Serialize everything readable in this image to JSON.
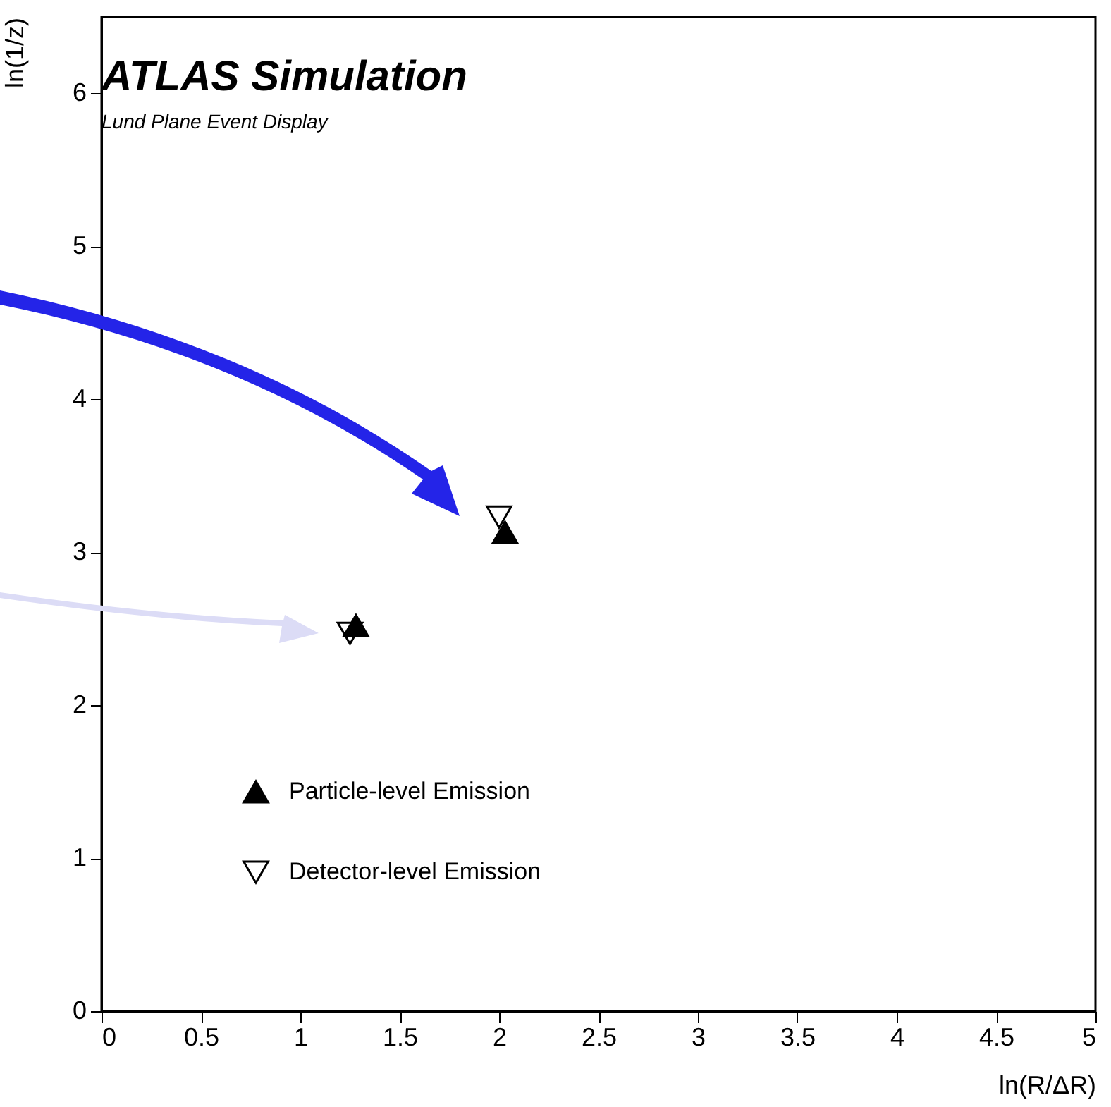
{
  "chart_data": {
    "type": "scatter",
    "title": "ATLAS Simulation",
    "subtitle": "Lund Plane Event Display",
    "xlabel": "ln(R/ΔR)",
    "ylabel": "ln(1/z)",
    "xlim": [
      0,
      5
    ],
    "xticks": [
      0,
      0.5,
      1,
      1.5,
      2,
      2.5,
      3,
      3.5,
      4,
      4.5,
      5
    ],
    "ylim": [
      0,
      6.5
    ],
    "yticks": [
      0,
      1,
      2,
      3,
      4,
      5,
      6
    ],
    "legend": "bottom left",
    "grid": false,
    "series": [
      {
        "name": "Particle-level Emission",
        "color": "#000000",
        "marker": "triangle",
        "x": [
          1.28,
          2.03
        ],
        "values": [
          2.52,
          3.13
        ]
      },
      {
        "name": "Detector-level Emission",
        "color": "#000000",
        "marker": "triangle-down",
        "x": [
          1.25,
          2.0
        ],
        "values": [
          2.47,
          3.23
        ]
      }
    ]
  }
}
